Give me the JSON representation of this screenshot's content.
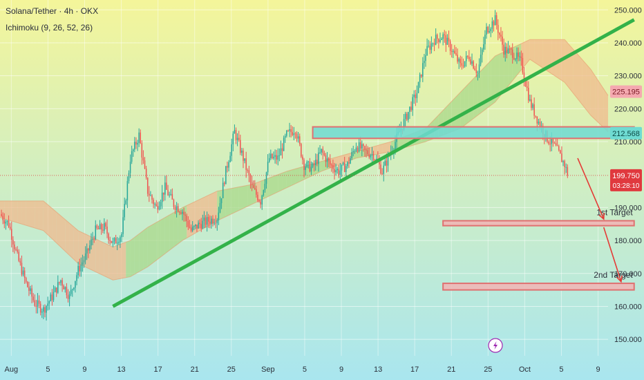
{
  "header": {
    "title": "Solana/Tether · 4h · OKX",
    "indicator": "Ichimoku (9, 26, 52, 26)"
  },
  "chart_data": {
    "type": "candlestick",
    "symbol": "Solana/Tether",
    "timeframe": "4h",
    "exchange": "OKX",
    "indicator": "Ichimoku (9, 26, 52, 26)",
    "y_axis": {
      "ticks": [
        "250.000",
        "240.000",
        "230.000",
        "220.000",
        "210.000",
        "190.000",
        "180.000",
        "170.000",
        "160.000",
        "150.000"
      ],
      "range": [
        145,
        253
      ],
      "side": "right"
    },
    "x_axis": {
      "ticks": [
        "Aug",
        "5",
        "9",
        "13",
        "17",
        "21",
        "25",
        "Sep",
        "5",
        "9",
        "13",
        "17",
        "21",
        "25",
        "Oct",
        "5",
        "9"
      ],
      "range_days": [
        0,
        70
      ]
    },
    "price_labels": [
      {
        "value": "225.195",
        "price": 225.195,
        "color": "#f5a9b0",
        "text_color": "#7a1a24"
      },
      {
        "value": "212.568",
        "price": 212.568,
        "color": "#6fdbd2",
        "text_color": "#0c4a46"
      },
      {
        "value": "199.750",
        "countdown": "03:28:10",
        "price": 199.75,
        "color": "#e0393e",
        "text_color": "#ffffff"
      }
    ],
    "close_series": [
      [
        0,
        188
      ],
      [
        1,
        185
      ],
      [
        2,
        175
      ],
      [
        3,
        167
      ],
      [
        4,
        161
      ],
      [
        5,
        159
      ],
      [
        6,
        163
      ],
      [
        7,
        168
      ],
      [
        8,
        163
      ],
      [
        9,
        171
      ],
      [
        10,
        176
      ],
      [
        11,
        183
      ],
      [
        12,
        184
      ],
      [
        13,
        179
      ],
      [
        14,
        182
      ],
      [
        15,
        205
      ],
      [
        16,
        212
      ],
      [
        17,
        195
      ],
      [
        18,
        190
      ],
      [
        19,
        196
      ],
      [
        20,
        191
      ],
      [
        21,
        189
      ],
      [
        22,
        183
      ],
      [
        23,
        185
      ],
      [
        24,
        186
      ],
      [
        25,
        187
      ],
      [
        26,
        201
      ],
      [
        27,
        213
      ],
      [
        28,
        205
      ],
      [
        29,
        196
      ],
      [
        30,
        192
      ],
      [
        31,
        205
      ],
      [
        32,
        205
      ],
      [
        33,
        212
      ],
      [
        34,
        214
      ],
      [
        35,
        203
      ],
      [
        36,
        202
      ],
      [
        37,
        207
      ],
      [
        38,
        203
      ],
      [
        39,
        201
      ],
      [
        40,
        203
      ],
      [
        41,
        209
      ],
      [
        42,
        207
      ],
      [
        43,
        206
      ],
      [
        44,
        201
      ],
      [
        45,
        207
      ],
      [
        46,
        213
      ],
      [
        47,
        219
      ],
      [
        48,
        225
      ],
      [
        49,
        237
      ],
      [
        50,
        241
      ],
      [
        51,
        242
      ],
      [
        52,
        238
      ],
      [
        53,
        233
      ],
      [
        54,
        236
      ],
      [
        55,
        231
      ],
      [
        56,
        244
      ],
      [
        57,
        247
      ],
      [
        58,
        238
      ],
      [
        59,
        237
      ],
      [
        60,
        234
      ],
      [
        61,
        222
      ],
      [
        62,
        216
      ],
      [
        63,
        211
      ],
      [
        64,
        208
      ],
      [
        65,
        203
      ],
      [
        65.4,
        199.75
      ]
    ],
    "cloud_top": [
      [
        0,
        192
      ],
      [
        5,
        192
      ],
      [
        9,
        183
      ],
      [
        13,
        178
      ],
      [
        15,
        180
      ],
      [
        17,
        184
      ],
      [
        21,
        190
      ],
      [
        25,
        195
      ],
      [
        29,
        197
      ],
      [
        33,
        201
      ],
      [
        37,
        204
      ],
      [
        41,
        207
      ],
      [
        45,
        210
      ],
      [
        49,
        214
      ],
      [
        53,
        225
      ],
      [
        57,
        236
      ],
      [
        61,
        241
      ],
      [
        65,
        241
      ],
      [
        68,
        232
      ],
      [
        70,
        224
      ]
    ],
    "cloud_bottom": [
      [
        0,
        187
      ],
      [
        5,
        183
      ],
      [
        9,
        173
      ],
      [
        13,
        168
      ],
      [
        15,
        169
      ],
      [
        17,
        172
      ],
      [
        21,
        180
      ],
      [
        25,
        186
      ],
      [
        29,
        191
      ],
      [
        33,
        196
      ],
      [
        37,
        201
      ],
      [
        41,
        205
      ],
      [
        45,
        207
      ],
      [
        49,
        210
      ],
      [
        53,
        214
      ],
      [
        57,
        222
      ],
      [
        61,
        235
      ],
      [
        65,
        228
      ],
      [
        68,
        218
      ],
      [
        70,
        213
      ]
    ],
    "trendline": {
      "from": [
        13,
        160
      ],
      "to": [
        73,
        247
      ],
      "color": "#33b249"
    },
    "zones": [
      {
        "name": "resistance",
        "from_day": 36,
        "to_day": 73,
        "low": 211,
        "high": 214.5,
        "fill": "#6fdbd2",
        "border": "#e07070"
      },
      {
        "name": "1st Target",
        "label": "1st Target",
        "from_day": 51,
        "to_day": 73,
        "low": 184.5,
        "high": 186,
        "fill": "#f2b4b4",
        "border": "#e07070"
      },
      {
        "name": "2nd Target",
        "label": "2nd Target",
        "from_day": 51,
        "to_day": 73,
        "low": 165,
        "high": 167,
        "fill": "#f2b4b4",
        "border": "#e07070"
      }
    ],
    "arrows": [
      {
        "from": [
          66.5,
          205
        ],
        "to": [
          69.5,
          186.5
        ]
      },
      {
        "from": [
          69.5,
          184
        ],
        "to": [
          71.5,
          167.5
        ]
      }
    ],
    "colors": {
      "up": "#26a69a",
      "down": "#ef5350",
      "background_top": "#f4f59a",
      "background_bottom": "#a9e6ef",
      "cloud_bullish": "#a9d88a",
      "cloud_bearish": "#f0b98e",
      "grid": "#ffffff"
    },
    "grid": true
  }
}
